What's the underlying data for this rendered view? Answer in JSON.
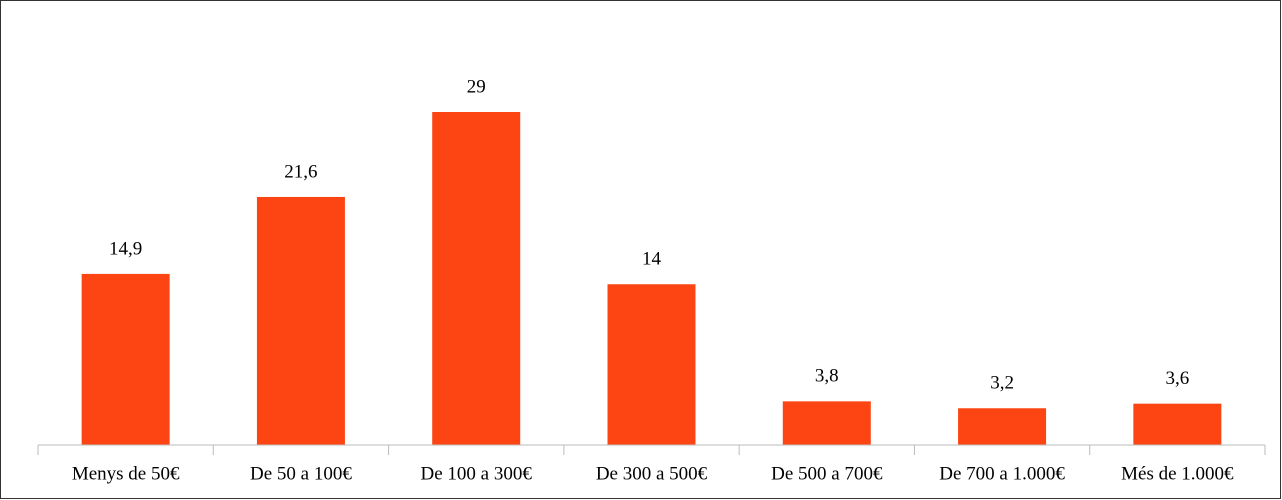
{
  "chart_data": {
    "type": "bar",
    "categories": [
      "Menys de 50€",
      "De 50 a 100€",
      "De 100 a 300€",
      "De 300 a 500€",
      "De 500 a 700€",
      "De 700 a 1.000€",
      "Més de 1.000€"
    ],
    "values": [
      14.9,
      21.6,
      29,
      14,
      3.8,
      3.2,
      3.6
    ],
    "value_labels": [
      "14,9",
      "21,6",
      "29",
      "14",
      "3,8",
      "3,2",
      "3,6"
    ],
    "color": "#fc4512"
  }
}
